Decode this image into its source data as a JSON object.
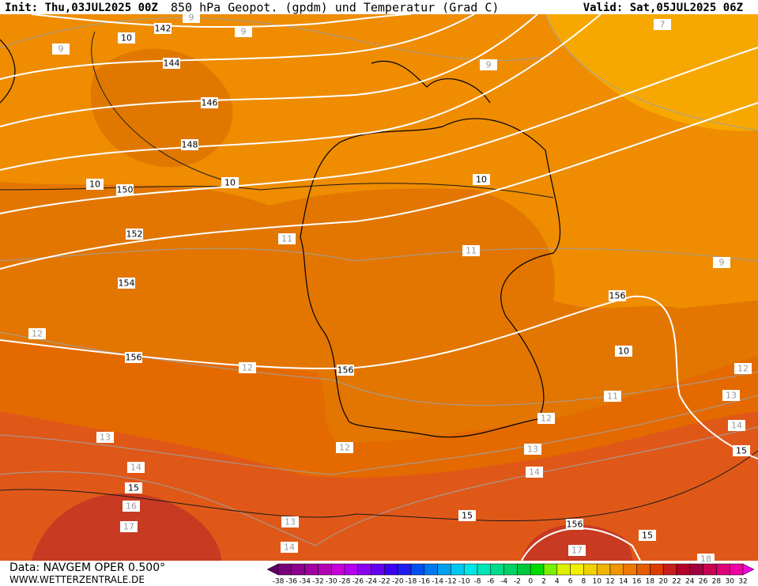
{
  "header": {
    "init": "Init: Thu,03JUL2025 00Z",
    "title": "850 hPa Geopot. (gpdm) und Temperatur (Grad C)",
    "valid": "Valid: Sat,05JUL2025 06Z"
  },
  "map": {
    "geopotential_labels": [
      142,
      144,
      146,
      148,
      150,
      152,
      154,
      156,
      156,
      156,
      156
    ],
    "isotherm_major_labels": [
      10,
      10,
      10,
      10,
      10,
      15,
      15,
      15,
      15
    ],
    "isotherm_labels": [
      9,
      9,
      9,
      9,
      9,
      7,
      11,
      11,
      11,
      12,
      12,
      12,
      12,
      12,
      13,
      13,
      13,
      13,
      14,
      14,
      14,
      14,
      16,
      17,
      17,
      18
    ]
  },
  "footer": {
    "data": "Data: NAVGEM OPER 0.500°",
    "site": "WWW.WETTERZENTRALE.DE"
  },
  "colorbar": {
    "labels": [
      -38,
      -36,
      -34,
      -32,
      -30,
      -28,
      -26,
      -24,
      -22,
      -20,
      -18,
      -16,
      -14,
      -12,
      -10,
      -8,
      -6,
      -4,
      -2,
      0,
      2,
      4,
      6,
      8,
      10,
      12,
      14,
      16,
      18,
      20,
      22,
      24,
      26,
      28,
      30,
      32
    ],
    "colors": [
      "#5a0064",
      "#780078",
      "#8c008c",
      "#a000a0",
      "#b400b4",
      "#c800dc",
      "#b400f0",
      "#8c00f0",
      "#6400f0",
      "#3c00f0",
      "#1e1ef0",
      "#0050f0",
      "#0078f0",
      "#00a0f0",
      "#00c8f0",
      "#00e6e6",
      "#00e6b4",
      "#00dc8c",
      "#00d264",
      "#00c83c",
      "#00dc00",
      "#78f000",
      "#dcf000",
      "#f0f000",
      "#f0d200",
      "#f0b400",
      "#f09600",
      "#f07800",
      "#e65a00",
      "#dc3c00",
      "#c81e1e",
      "#b40028",
      "#a0003c",
      "#c80050",
      "#dc0078",
      "#f000a0",
      "#f000dc"
    ]
  }
}
